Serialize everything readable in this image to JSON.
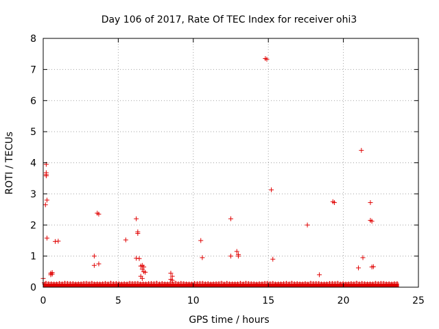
{
  "chart_data": {
    "type": "scatter",
    "title": "Day 106 of 2017, Rate Of TEC Index for receiver ohi3",
    "xlabel": "GPS time / hours",
    "ylabel": "ROTI / TECUs",
    "xlim": [
      0,
      25
    ],
    "ylim": [
      0,
      8
    ],
    "xticks": [
      "0",
      "5",
      "10",
      "15",
      "20",
      "25"
    ],
    "yticks": [
      "0",
      "1",
      "2",
      "3",
      "4",
      "5",
      "6",
      "7",
      "8"
    ],
    "grid": true,
    "marker": "+",
    "color": "#e00000",
    "baseline_band": {
      "x": [
        0,
        23.7
      ],
      "y": [
        0,
        0.12
      ]
    },
    "points": [
      [
        0.0,
        0.28
      ],
      [
        0.1,
        0.1
      ],
      [
        0.2,
        3.95
      ],
      [
        0.2,
        3.68
      ],
      [
        0.2,
        3.62
      ],
      [
        0.2,
        3.58
      ],
      [
        0.15,
        2.65
      ],
      [
        0.25,
        2.8
      ],
      [
        0.25,
        1.58
      ],
      [
        0.5,
        0.45
      ],
      [
        0.5,
        0.4
      ],
      [
        0.6,
        0.47
      ],
      [
        0.6,
        0.42
      ],
      [
        0.8,
        1.47
      ],
      [
        1.0,
        1.48
      ],
      [
        3.4,
        1.0
      ],
      [
        3.4,
        0.7
      ],
      [
        3.7,
        0.75
      ],
      [
        3.6,
        2.38
      ],
      [
        3.7,
        2.35
      ],
      [
        5.5,
        1.52
      ],
      [
        6.2,
        2.2
      ],
      [
        6.3,
        1.78
      ],
      [
        6.3,
        1.73
      ],
      [
        6.2,
        0.93
      ],
      [
        6.4,
        0.92
      ],
      [
        6.5,
        0.68
      ],
      [
        6.6,
        0.7
      ],
      [
        6.7,
        0.65
      ],
      [
        6.6,
        0.58
      ],
      [
        6.5,
        0.35
      ],
      [
        6.6,
        0.28
      ],
      [
        6.7,
        0.5
      ],
      [
        6.8,
        0.48
      ],
      [
        8.5,
        0.45
      ],
      [
        8.6,
        0.35
      ],
      [
        8.5,
        0.25
      ],
      [
        8.6,
        0.22
      ],
      [
        10.5,
        1.5
      ],
      [
        10.6,
        0.95
      ],
      [
        12.5,
        2.2
      ],
      [
        12.5,
        1.0
      ],
      [
        12.9,
        1.15
      ],
      [
        13.0,
        1.05
      ],
      [
        13.0,
        1.0
      ],
      [
        14.8,
        7.35
      ],
      [
        14.9,
        7.33
      ],
      [
        15.2,
        3.13
      ],
      [
        15.3,
        0.9
      ],
      [
        17.6,
        2.0
      ],
      [
        18.4,
        0.4
      ],
      [
        19.3,
        2.75
      ],
      [
        19.4,
        2.72
      ],
      [
        21.0,
        0.62
      ],
      [
        21.2,
        4.4
      ],
      [
        21.3,
        0.95
      ],
      [
        21.8,
        2.72
      ],
      [
        21.8,
        2.15
      ],
      [
        21.9,
        2.12
      ],
      [
        21.9,
        0.65
      ],
      [
        22.0,
        0.66
      ]
    ]
  }
}
